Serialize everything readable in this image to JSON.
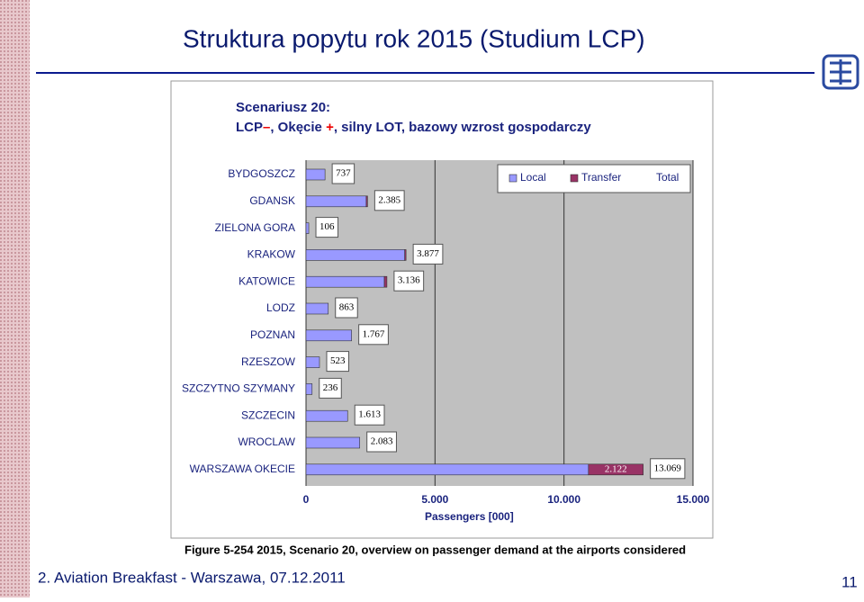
{
  "slide": {
    "title": "Struktura popytu rok 2015 (Studium LCP)",
    "footer": "2. Aviation Breakfast - Warszawa, 07.12.2011",
    "page_number": "11"
  },
  "chart_data": {
    "type": "bar",
    "title": "Scenariusz 20:",
    "subtitle_parts": [
      "LCP",
      "–",
      ", Okęcie ",
      "+",
      ", silny LOT, bazowy wzrost gospodarczy"
    ],
    "caption": "Figure 5-254 2015, Scenario 20, overview on passenger demand at the airports considered",
    "x_label": "Passengers [000]",
    "categories": [
      "BYDGOSZCZ",
      "GDANSK",
      "ZIELONA GORA",
      "KRAKOW",
      "KATOWICE",
      "LODZ",
      "POZNAN",
      "RZESZOW",
      "SZCZYTNO SZYMANY",
      "SZCZECIN",
      "WROCLAW",
      "WARSZAWA OKECIE"
    ],
    "series": [
      {
        "name": "Local",
        "color": "#9999ff",
        "values": [
          737,
          2335,
          106,
          3827,
          3036,
          863,
          1767,
          523,
          236,
          1613,
          2083,
          10947
        ]
      },
      {
        "name": "Transfer",
        "color": "#993366",
        "values": [
          0,
          50,
          0,
          50,
          100,
          0,
          0,
          0,
          0,
          0,
          0,
          2122
        ],
        "value_labels": [
          null,
          null,
          null,
          null,
          null,
          null,
          null,
          null,
          null,
          null,
          null,
          "2.122"
        ]
      }
    ],
    "totals": {
      "name": "Total",
      "values": [
        737,
        2385,
        106,
        3877,
        3136,
        863,
        1767,
        523,
        236,
        1613,
        2083,
        13069
      ],
      "value_labels": [
        "737",
        "2.385",
        "106",
        "3.877",
        "3.136",
        "863",
        "1.767",
        "523",
        "236",
        "1.613",
        "2.083",
        "13.069"
      ]
    },
    "xlim": [
      0,
      15000
    ],
    "xticks": [
      0,
      {
        "value": 5000,
        "label": "5.000"
      },
      {
        "value": 10000,
        "label": "10.000"
      },
      {
        "value": 15000,
        "label": "15.000"
      }
    ],
    "grid": true
  }
}
